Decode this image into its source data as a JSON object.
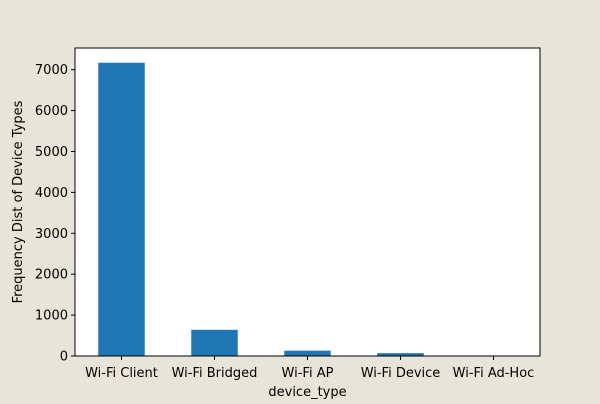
{
  "colors": {
    "background": "#e7e4d9",
    "plot_area": "#ffffff",
    "bar": "#1f77b4",
    "axis": "#000000"
  },
  "chart_data": {
    "type": "bar",
    "categories": [
      "Wi-Fi Client",
      "Wi-Fi Bridged",
      "Wi-Fi AP",
      "Wi-Fi Device",
      "Wi-Fi Ad-Hoc"
    ],
    "values": [
      7170,
      640,
      130,
      70,
      5
    ],
    "title": "",
    "xlabel": "device_type",
    "ylabel": "Frequency Dist of Device Types",
    "ylim": [
      0,
      7530
    ],
    "yticks": [
      0,
      1000,
      2000,
      3000,
      4000,
      5000,
      6000,
      7000
    ],
    "grid": false,
    "legend": "none"
  }
}
